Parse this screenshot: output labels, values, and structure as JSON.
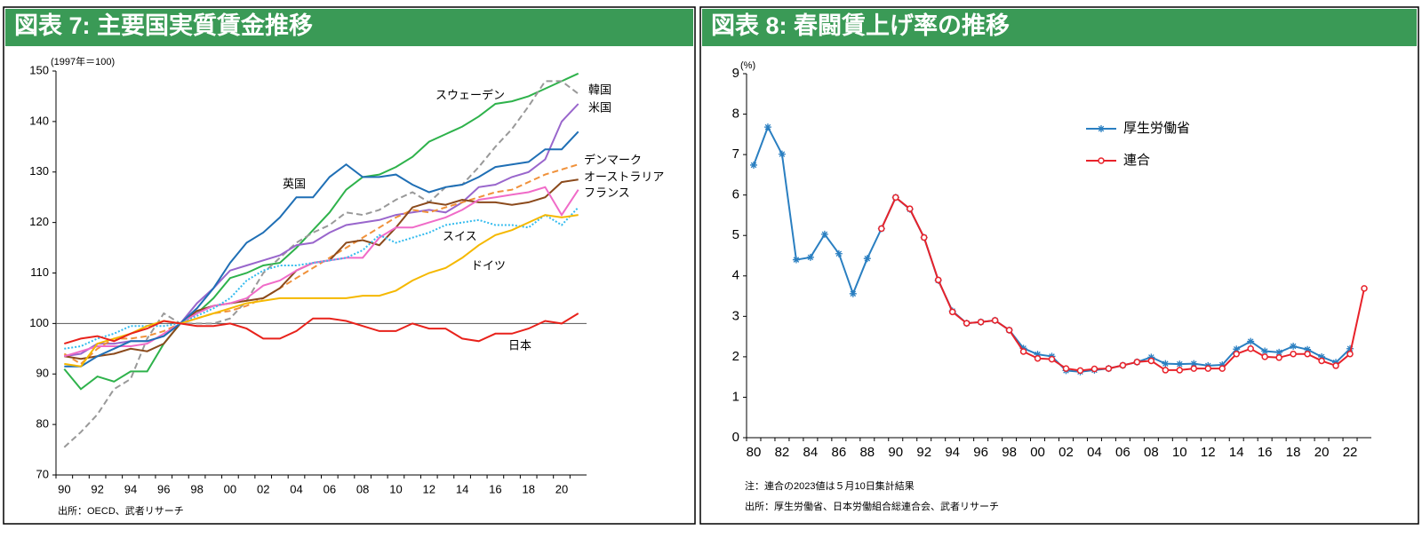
{
  "chart_data": [
    {
      "type": "line",
      "title": "図表 7: 主要国実質賃金推移",
      "y_unit_label": "(1997年＝100)",
      "source": "出所：OECD、武者リサーチ",
      "categories": [
        "90",
        null,
        "92",
        null,
        "94",
        null,
        "96",
        null,
        "98",
        null,
        "00",
        null,
        "02",
        null,
        "04",
        null,
        "06",
        null,
        "08",
        null,
        "10",
        null,
        "12",
        null,
        "14",
        null,
        "16",
        null,
        "18",
        null,
        "20",
        null
      ],
      "ylim": [
        70,
        150
      ],
      "yticks": [
        70,
        80,
        90,
        100,
        110,
        120,
        130,
        140,
        150
      ],
      "reference_line": 100,
      "series": [
        {
          "name": "スウェーデン",
          "color": "#2eb24b",
          "dash": "solid",
          "values": [
            91,
            87,
            89.5,
            88.5,
            90.5,
            90.5,
            96,
            100,
            102,
            105,
            109,
            110,
            111.5,
            112,
            115,
            118.5,
            122,
            126.5,
            129,
            129.5,
            131,
            133,
            136,
            137.5,
            139,
            141,
            143.5,
            144,
            145,
            146.5,
            148,
            149.5
          ]
        },
        {
          "name": "韓国",
          "color": "#999999",
          "dash": "dashed",
          "values": [
            75.5,
            78.5,
            82,
            87,
            89,
            97,
            102,
            100,
            100,
            100,
            101,
            104.5,
            110,
            113,
            116,
            118,
            119.5,
            122,
            121.5,
            122.5,
            124.5,
            126,
            124,
            127,
            127.5,
            131,
            135,
            138.5,
            143,
            148,
            148,
            145.5
          ]
        },
        {
          "name": "米国",
          "color": "#9966cc",
          "dash": "solid",
          "values": [
            93.5,
            94,
            96,
            96,
            96.5,
            96.5,
            97.5,
            100,
            104,
            107,
            110.5,
            111.5,
            112.5,
            113.5,
            115.5,
            116,
            118,
            119.5,
            120,
            120.5,
            121.5,
            122,
            122.5,
            122,
            124,
            127,
            127.5,
            129,
            130,
            132.5,
            140,
            143.5
          ]
        },
        {
          "name": "デンマーク",
          "color": "#f0913a",
          "dash": "dashed",
          "values": [
            94,
            92,
            95,
            97,
            97,
            97.5,
            98.5,
            100,
            101,
            102,
            102.5,
            103.5,
            105,
            107,
            109,
            111,
            113,
            115,
            117,
            119,
            121,
            122.5,
            122,
            123,
            124,
            125,
            126,
            126.5,
            128,
            129.5,
            130.5,
            131.5
          ]
        },
        {
          "name": "オーストラリア",
          "color": "#8b4a1c",
          "dash": "solid",
          "values": [
            93.5,
            93,
            93.5,
            94,
            95,
            94.5,
            96,
            100,
            102.5,
            103.5,
            104,
            104.5,
            105,
            107,
            110.5,
            112,
            112.5,
            116,
            116.5,
            115.5,
            119,
            123,
            124,
            123.5,
            124.5,
            124,
            124,
            123.5,
            124,
            125,
            128,
            128.5
          ]
        },
        {
          "name": "フランス",
          "color": "#f06bc8",
          "dash": "solid",
          "values": [
            93.5,
            94.5,
            95.5,
            95.5,
            95.5,
            96,
            98,
            100,
            102,
            103.5,
            104,
            105,
            107.5,
            108.5,
            110.5,
            112,
            112.5,
            113,
            113,
            117,
            119,
            119,
            120,
            121,
            122.5,
            124.5,
            125,
            125.5,
            126,
            127,
            121.5,
            126.5
          ]
        },
        {
          "name": "英国",
          "color": "#1f6fb5",
          "dash": "solid",
          "values": [
            91.5,
            91.5,
            93.5,
            95,
            96.5,
            96.5,
            97.5,
            100,
            103,
            107,
            112,
            116,
            118,
            121,
            125,
            125,
            129,
            131.5,
            129,
            129,
            129.5,
            127.5,
            126,
            127,
            127.5,
            129,
            131,
            131.5,
            132,
            134.5,
            134.5,
            138
          ]
        },
        {
          "name": "スイス",
          "color": "#33bbee",
          "dash": "dotted",
          "values": [
            95,
            95.5,
            97,
            98,
            99.5,
            99.5,
            99.5,
            100,
            101.5,
            103,
            105,
            108.5,
            110.5,
            111.5,
            111.5,
            112,
            112.5,
            113,
            114.5,
            117.5,
            116,
            117,
            118,
            119.5,
            120,
            120.5,
            119.5,
            119.5,
            119,
            121.5,
            119.5,
            123
          ]
        },
        {
          "name": "ドイツ",
          "color": "#f5b800",
          "dash": "solid",
          "values": [
            92,
            91.5,
            96,
            97,
            98,
            99.5,
            100.5,
            100,
            101,
            102,
            103,
            104,
            104.5,
            105,
            105,
            105,
            105,
            105,
            105.5,
            105.5,
            106.5,
            108.5,
            110,
            111,
            113,
            115.5,
            117.5,
            118.5,
            120,
            121.5,
            121,
            121.5
          ]
        },
        {
          "name": "日本",
          "color": "#e8221b",
          "dash": "solid",
          "values": [
            96,
            97,
            97.5,
            96.5,
            98,
            99,
            100.5,
            100,
            99.5,
            99.5,
            100,
            99,
            97,
            97,
            98.5,
            101,
            101,
            100.5,
            99.5,
            98.5,
            98.5,
            100,
            99,
            99,
            97,
            96.5,
            98,
            98,
            99,
            100.5,
            100,
            102
          ]
        }
      ]
    },
    {
      "type": "line",
      "title": "図表 8: 春闘賃上げ率の推移",
      "y_unit_label": "(%)",
      "note": "注：連合の2023値は５月10日集計結果",
      "source": "出所：厚生労働省、日本労働組合総連合会、武者リサーチ",
      "categories": [
        "80",
        null,
        "82",
        null,
        "84",
        null,
        "86",
        null,
        "88",
        null,
        "90",
        null,
        "92",
        null,
        "94",
        null,
        "96",
        null,
        "98",
        null,
        "00",
        null,
        "02",
        null,
        "04",
        null,
        "06",
        null,
        "08",
        null,
        "10",
        null,
        "12",
        null,
        "14",
        null,
        "16",
        null,
        "18",
        null,
        "20",
        null,
        "22",
        null
      ],
      "ylim": [
        0,
        9
      ],
      "yticks": [
        0,
        1,
        2,
        3,
        4,
        5,
        6,
        7,
        8,
        9
      ],
      "series": [
        {
          "name": "厚生労働省",
          "color": "#2a7fc1",
          "marker": "asterisk",
          "values": [
            6.74,
            7.68,
            7.01,
            4.4,
            4.46,
            5.03,
            4.55,
            3.56,
            4.43,
            5.17,
            5.94,
            5.65,
            4.95,
            3.89,
            3.13,
            2.83,
            2.86,
            2.9,
            2.66,
            2.21,
            2.06,
            2.01,
            1.66,
            1.63,
            1.67,
            1.71,
            1.79,
            1.87,
            1.99,
            1.83,
            1.82,
            1.83,
            1.78,
            1.8,
            2.19,
            2.38,
            2.14,
            2.11,
            2.26,
            2.18,
            2.0,
            1.86,
            2.2,
            null
          ]
        },
        {
          "name": "連合",
          "color": "#e8222a",
          "marker": "circle",
          "values": [
            null,
            null,
            null,
            null,
            null,
            null,
            null,
            null,
            null,
            5.17,
            5.94,
            5.66,
            4.95,
            3.9,
            3.11,
            2.83,
            2.86,
            2.9,
            2.66,
            2.13,
            1.96,
            1.94,
            1.71,
            1.66,
            1.7,
            1.71,
            1.79,
            1.87,
            1.9,
            1.67,
            1.67,
            1.71,
            1.71,
            1.71,
            2.07,
            2.2,
            2.0,
            1.98,
            2.07,
            2.07,
            1.9,
            1.78,
            2.07,
            3.69
          ]
        }
      ]
    }
  ]
}
